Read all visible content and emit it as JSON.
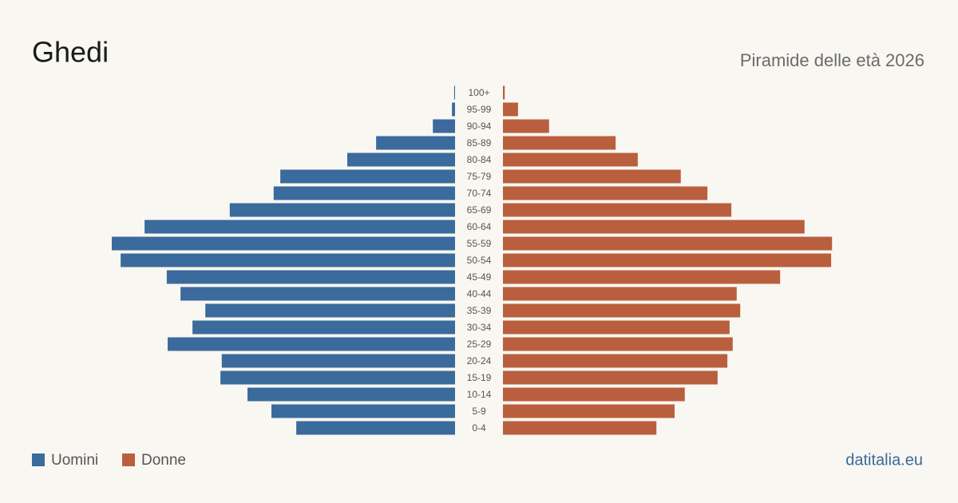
{
  "chart_data": {
    "type": "pyramid",
    "title": "Ghedi",
    "subtitle": "Piramide delle età 2026",
    "source": "datitalia.eu",
    "categories": [
      "100+",
      "95-99",
      "90-94",
      "85-89",
      "80-84",
      "75-79",
      "70-74",
      "65-69",
      "60-64",
      "55-59",
      "50-54",
      "45-49",
      "40-44",
      "35-39",
      "30-34",
      "25-29",
      "20-24",
      "15-19",
      "10-14",
      "5-9",
      "0-4"
    ],
    "series": [
      {
        "name": "Uomini",
        "color": "#3b6a9c",
        "values": [
          2,
          7,
          50,
          178,
          243,
          394,
          409,
          508,
          700,
          774,
          754,
          650,
          619,
          563,
          592,
          648,
          526,
          529,
          468,
          414,
          358
        ]
      },
      {
        "name": "Donne",
        "color": "#b95f3e",
        "values": [
          4,
          34,
          104,
          254,
          304,
          401,
          461,
          515,
          680,
          742,
          740,
          625,
          527,
          535,
          511,
          518,
          506,
          484,
          410,
          387,
          346
        ]
      }
    ]
  }
}
